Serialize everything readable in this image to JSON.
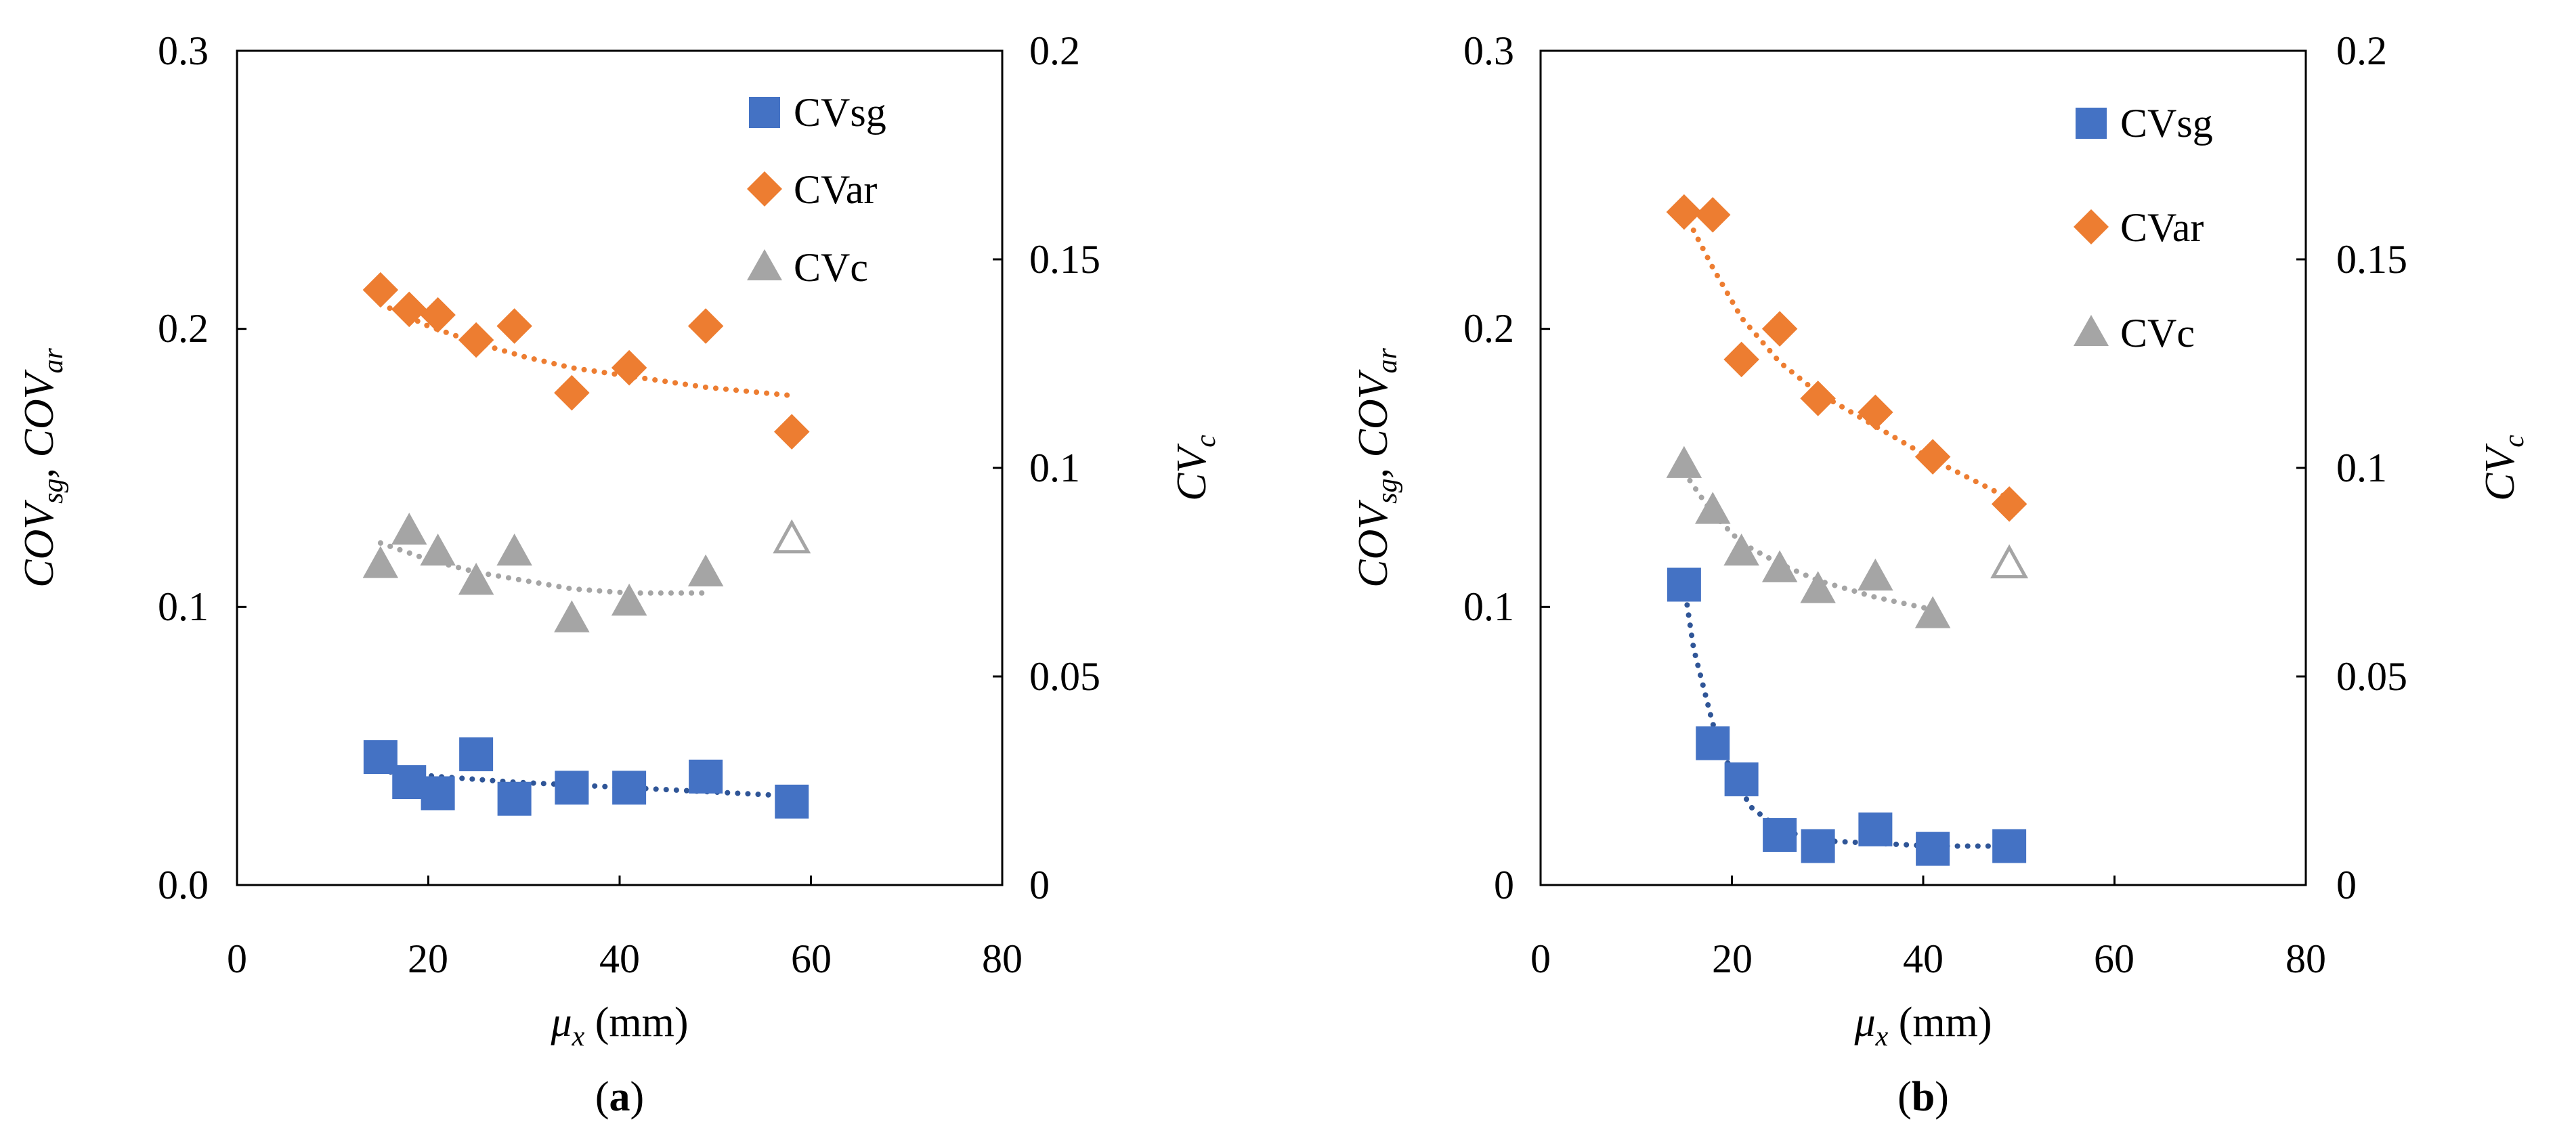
{
  "figure": {
    "panels": [
      {
        "caption_open": "(",
        "caption_letter": "a",
        "caption_close": ")",
        "legend": [
          "CVsg",
          "CVar",
          "CVc"
        ],
        "x_axis": {
          "label_var": "μ",
          "label_sub": "x",
          "label_unit": " (mm)",
          "ticks": [
            "0",
            "20",
            "40",
            "60",
            "80"
          ]
        },
        "y_left": {
          "label_parts": [
            "COV",
            "sg",
            ", ",
            "COV",
            "ar"
          ],
          "ticks": [
            "0.0",
            "0.1",
            "0.2",
            "0.3"
          ]
        },
        "y_right": {
          "label_main": "CV",
          "label_sub": "c",
          "ticks": [
            "0",
            "0.05",
            "0.1",
            "0.15",
            "0.2"
          ]
        }
      },
      {
        "caption_open": "(",
        "caption_letter": "b",
        "caption_close": ")",
        "legend": [
          "CVsg",
          "CVar",
          "CVc"
        ],
        "x_axis": {
          "label_var": "μ",
          "label_sub": "x",
          "label_unit": " (mm)",
          "ticks": [
            "0",
            "20",
            "40",
            "60",
            "80"
          ]
        },
        "y_left": {
          "label_parts": [
            "COV",
            "sg",
            ", ",
            "COV",
            "ar"
          ],
          "ticks": [
            "0",
            "0.1",
            "0.2",
            "0.3"
          ]
        },
        "y_right": {
          "label_main": "CV",
          "label_sub": "c",
          "ticks": [
            "0",
            "0.05",
            "0.1",
            "0.15",
            "0.2"
          ]
        }
      }
    ]
  },
  "colors": {
    "sg": "#4472C4",
    "sg_trend": "#2F5597",
    "ar": "#ED7D31",
    "c": "#A5A5A5",
    "frame": "#000000"
  },
  "chart_data": [
    {
      "type": "scatter",
      "title": "(a)",
      "xlabel": "μx (mm)",
      "ylabel": "COVsg, COVar",
      "y2label": "CVc",
      "xlim": [
        0,
        80
      ],
      "ylim": [
        0,
        0.3
      ],
      "y2lim": [
        0,
        0.2
      ],
      "legend_position": "top-right",
      "series": [
        {
          "name": "CVsg",
          "axis": "left",
          "marker": "square",
          "x": [
            15,
            18,
            21,
            25,
            29,
            35,
            41,
            49,
            58
          ],
          "y": [
            0.046,
            0.037,
            0.033,
            0.047,
            0.031,
            0.035,
            0.035,
            0.039,
            0.03
          ],
          "trend": [
            [
              15,
              0.041
            ],
            [
              21,
              0.039
            ],
            [
              29,
              0.037
            ],
            [
              41,
              0.035
            ],
            [
              58,
              0.032
            ]
          ]
        },
        {
          "name": "CVar",
          "axis": "left",
          "marker": "diamond",
          "x": [
            15,
            18,
            21,
            25,
            29,
            35,
            41,
            49,
            58
          ],
          "y": [
            0.214,
            0.207,
            0.205,
            0.196,
            0.201,
            0.177,
            0.186,
            0.201,
            0.163
          ],
          "trend": [
            [
              15,
              0.209
            ],
            [
              20,
              0.201
            ],
            [
              25,
              0.195
            ],
            [
              30,
              0.19
            ],
            [
              35,
              0.186
            ],
            [
              41,
              0.183
            ],
            [
              49,
              0.179
            ],
            [
              58,
              0.176
            ]
          ]
        },
        {
          "name": "CVc",
          "axis": "right",
          "marker": "triangle",
          "x": [
            15,
            18,
            21,
            25,
            29,
            35,
            41,
            49
          ],
          "y": [
            0.077,
            0.085,
            0.08,
            0.073,
            0.08,
            0.064,
            0.068,
            0.075
          ],
          "outlier": {
            "x": 58,
            "y": 0.083,
            "marker": "open-triangle"
          },
          "trend": [
            [
              15,
              0.082
            ],
            [
              20,
              0.078
            ],
            [
              25,
              0.075
            ],
            [
              30,
              0.073
            ],
            [
              35,
              0.071
            ],
            [
              41,
              0.07
            ],
            [
              49,
              0.07
            ]
          ]
        }
      ]
    },
    {
      "type": "scatter",
      "title": "(b)",
      "xlabel": "μx (mm)",
      "ylabel": "COVsg, COVar",
      "y2label": "CVc",
      "xlim": [
        0,
        80
      ],
      "ylim": [
        0,
        0.3
      ],
      "y2lim": [
        0,
        0.2
      ],
      "legend_position": "top-right",
      "series": [
        {
          "name": "CVsg",
          "axis": "left",
          "marker": "square",
          "x": [
            15,
            18,
            21,
            25,
            29,
            35,
            41,
            49
          ],
          "y": [
            0.108,
            0.051,
            0.038,
            0.018,
            0.014,
            0.02,
            0.013,
            0.014
          ],
          "trend": [
            [
              15,
              0.108
            ],
            [
              16,
              0.085
            ],
            [
              18,
              0.058
            ],
            [
              20,
              0.04
            ],
            [
              22,
              0.028
            ],
            [
              25,
              0.02
            ],
            [
              29,
              0.016
            ],
            [
              35,
              0.015
            ],
            [
              41,
              0.014
            ],
            [
              49,
              0.014
            ]
          ]
        },
        {
          "name": "CVar",
          "axis": "left",
          "marker": "diamond",
          "x": [
            15,
            18,
            21,
            25,
            29,
            35,
            41,
            49
          ],
          "y": [
            0.242,
            0.241,
            0.189,
            0.2,
            0.175,
            0.17,
            0.154,
            0.137
          ],
          "trend": [
            [
              15,
              0.242
            ],
            [
              18,
              0.222
            ],
            [
              21,
              0.204
            ],
            [
              25,
              0.188
            ],
            [
              29,
              0.177
            ],
            [
              35,
              0.165
            ],
            [
              41,
              0.153
            ],
            [
              49,
              0.139
            ]
          ]
        },
        {
          "name": "CVc",
          "axis": "right",
          "marker": "triangle",
          "x": [
            15,
            18,
            21,
            25,
            29,
            35,
            41
          ],
          "y": [
            0.101,
            0.09,
            0.08,
            0.076,
            0.071,
            0.074,
            0.065
          ],
          "outlier": {
            "x": 49,
            "y": 0.077,
            "marker": "open-triangle"
          },
          "trend": [
            [
              15,
              0.099
            ],
            [
              18,
              0.089
            ],
            [
              21,
              0.082
            ],
            [
              25,
              0.077
            ],
            [
              29,
              0.073
            ],
            [
              35,
              0.069
            ],
            [
              41,
              0.066
            ]
          ]
        }
      ]
    }
  ]
}
